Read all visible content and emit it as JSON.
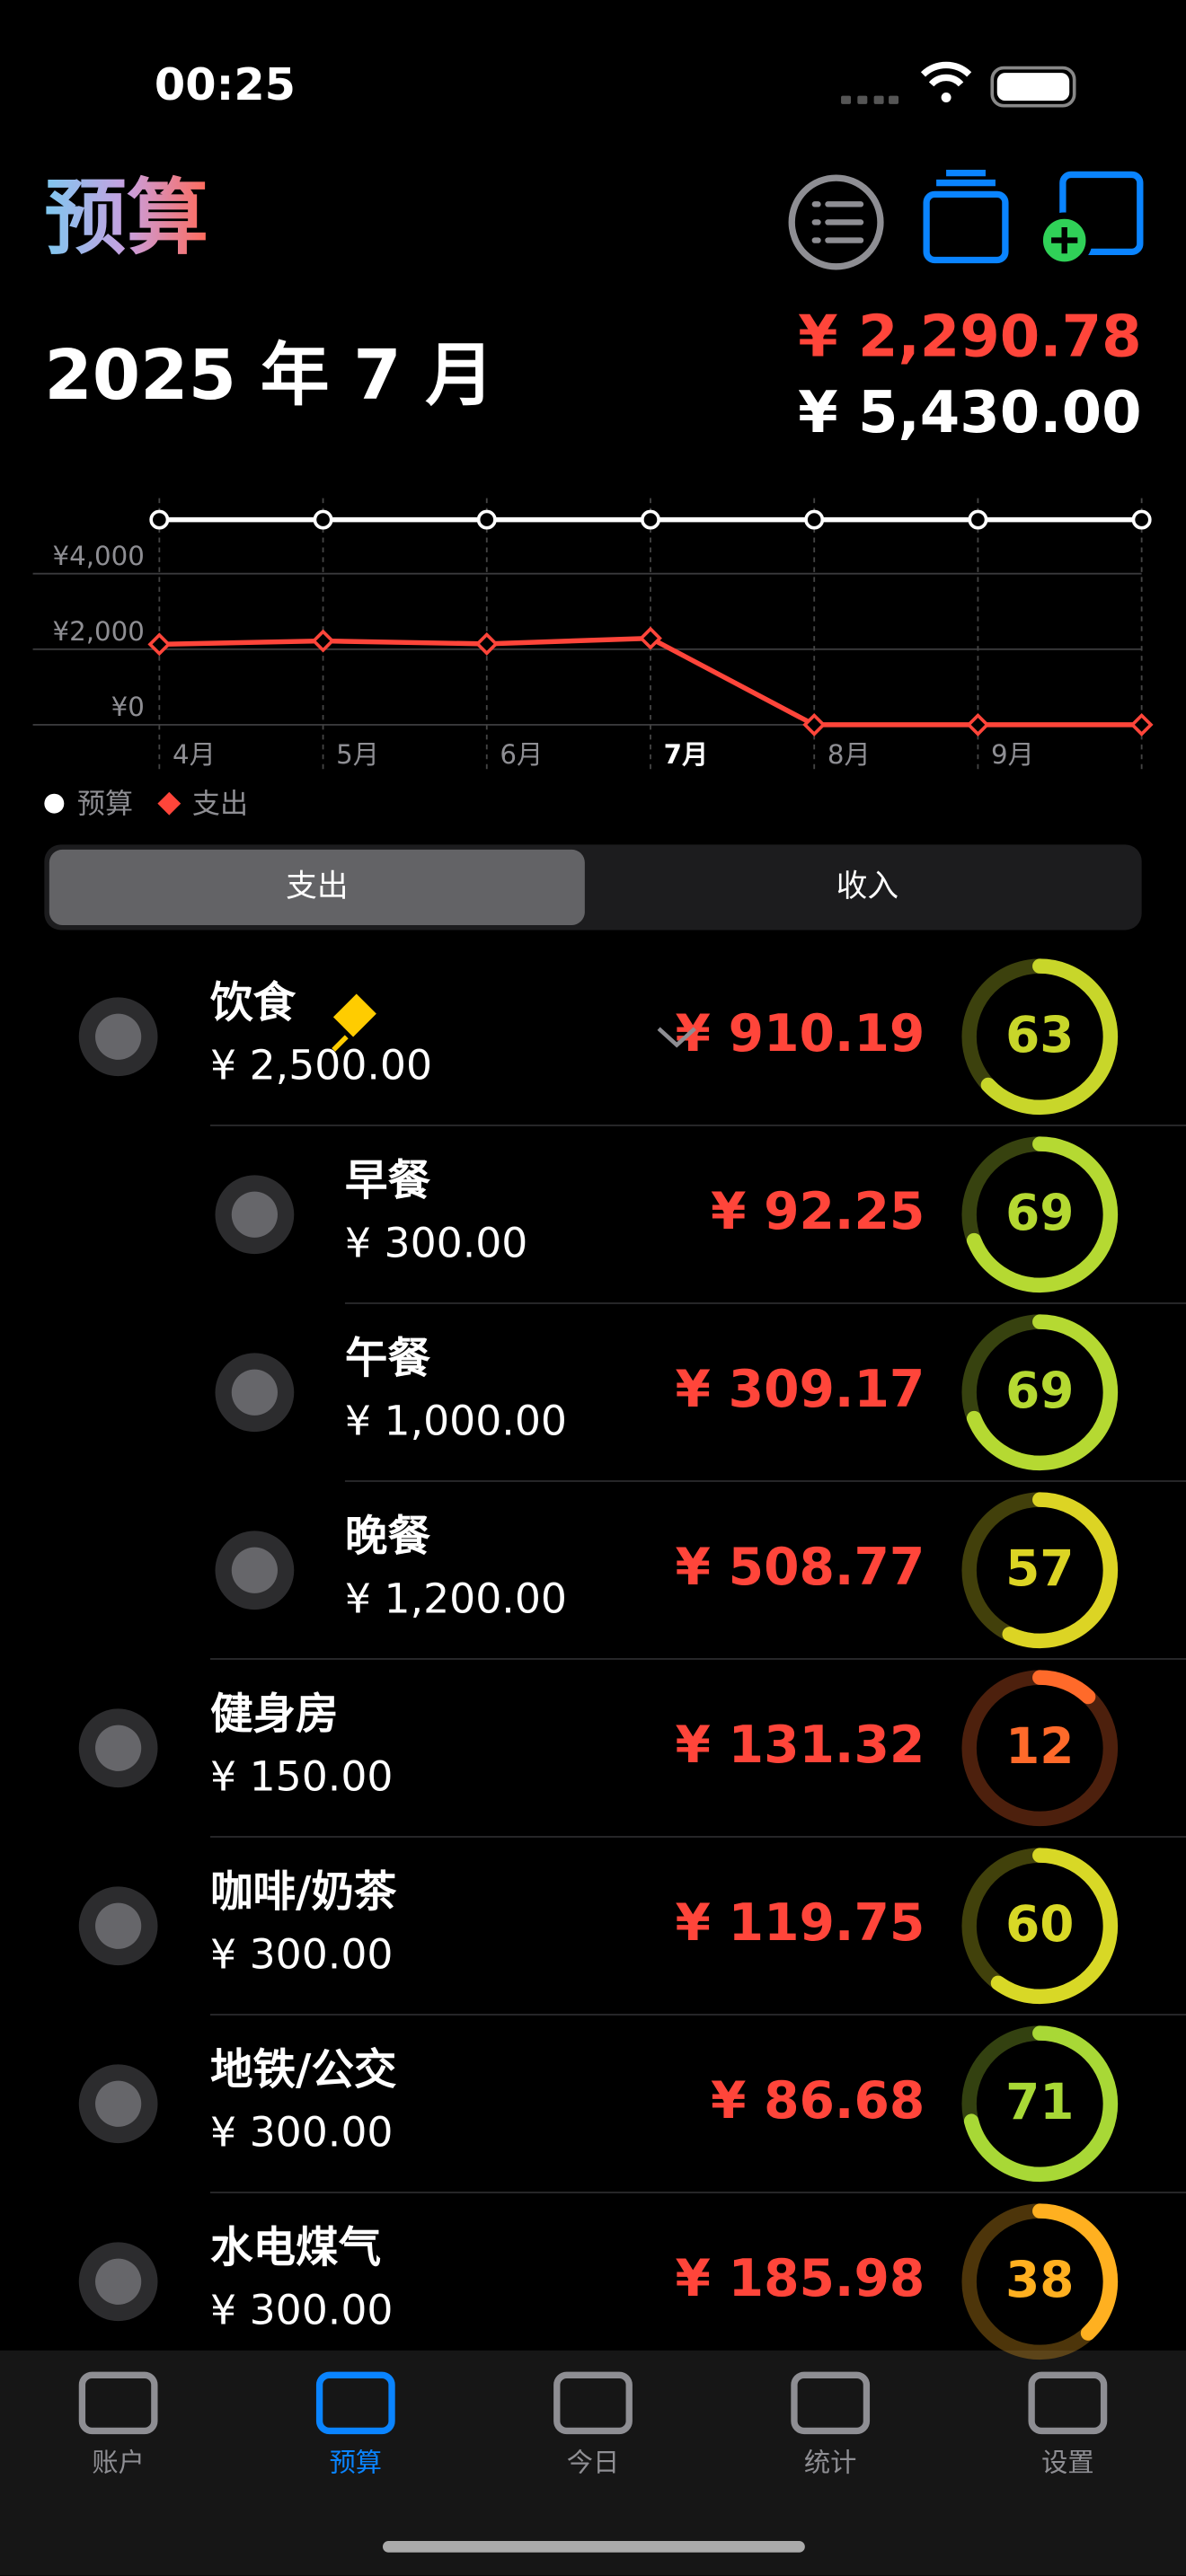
{
  "status": {
    "time": "00:25"
  },
  "header": {
    "title": "预算",
    "month": "2025 年 7 月",
    "spent": "¥ 2,290.78",
    "budget": "¥ 5,430.00"
  },
  "chart_data": {
    "type": "line",
    "categories": [
      "4月",
      "5月",
      "6月",
      "7月",
      "8月",
      "9月",
      null
    ],
    "series": [
      {
        "name": "预算",
        "color": "#ffffff",
        "values": [
          5430,
          5430,
          5430,
          5430,
          5430,
          5430,
          5430
        ]
      },
      {
        "name": "支出",
        "color": "#ff453a",
        "values": [
          2130,
          2220,
          2140,
          2290.78,
          0,
          0,
          0
        ]
      }
    ],
    "ylim": [
      0,
      6000
    ],
    "yticks": [
      {
        "value": 0,
        "label": "¥0"
      },
      {
        "value": 2000,
        "label": "¥2,000"
      },
      {
        "value": 4000,
        "label": "¥4,000"
      }
    ],
    "grid": true
  },
  "segments": [
    "支出",
    "收入"
  ],
  "rows": [
    {
      "name": "饮食",
      "budget": "¥ 2,500.00",
      "spent": "¥ 910.19",
      "percent": 63,
      "color": "#c8d62a",
      "sub": false
    },
    {
      "name": "早餐",
      "budget": "¥ 300.00",
      "spent": "¥ 92.25",
      "percent": 69,
      "color": "#b5d932",
      "sub": true
    },
    {
      "name": "午餐",
      "budget": "¥ 1,000.00",
      "spent": "¥ 309.17",
      "percent": 69,
      "color": "#b5d932",
      "sub": true
    },
    {
      "name": "晚餐",
      "budget": "¥ 1,200.00",
      "spent": "¥ 508.77",
      "percent": 57,
      "color": "#dcd424",
      "sub": true
    },
    {
      "name": "健身房",
      "budget": "¥ 150.00",
      "spent": "¥ 131.32",
      "percent": 12,
      "color": "#ff6a2a",
      "sub": false
    },
    {
      "name": "咖啡/奶茶",
      "budget": "¥ 300.00",
      "spent": "¥ 119.75",
      "percent": 60,
      "color": "#d8d826",
      "sub": false
    },
    {
      "name": "地铁/公交",
      "budget": "¥ 300.00",
      "spent": "¥ 86.68",
      "percent": 71,
      "color": "#a8d836",
      "sub": false
    },
    {
      "name": "水电煤气",
      "budget": "¥ 300.00",
      "spent": "¥ 185.98",
      "percent": 38,
      "color": "#ffb020",
      "sub": false
    }
  ],
  "tabs": [
    "账户",
    "预算",
    "今日",
    "统计",
    "设置"
  ]
}
